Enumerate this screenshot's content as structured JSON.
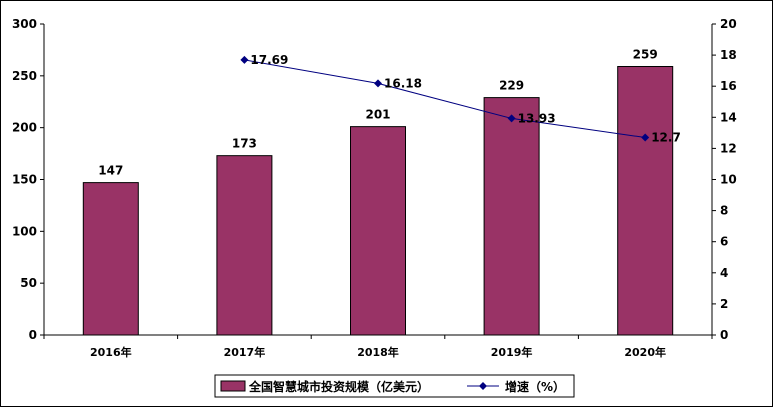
{
  "chart_data": {
    "type": "bar",
    "categories": [
      "2016年",
      "2017年",
      "2018年",
      "2019年",
      "2020年"
    ],
    "series": [
      {
        "name": "全国智慧城市投资规模（亿美元）",
        "type": "bar",
        "axis": "left",
        "values": [
          147,
          173,
          201,
          229,
          259
        ],
        "labels": [
          "147",
          "173",
          "201",
          "229",
          "259"
        ],
        "color": "#993366"
      },
      {
        "name": "增速（%）",
        "type": "line",
        "axis": "right",
        "values": [
          null,
          17.69,
          16.18,
          13.93,
          12.7
        ],
        "labels": [
          "",
          "17.69",
          "16.18",
          "13.93",
          "12.7"
        ],
        "color": "#000080"
      }
    ],
    "y_left": {
      "min": 0,
      "max": 300,
      "ticks": [
        "0",
        "50",
        "100",
        "150",
        "200",
        "250",
        "300"
      ]
    },
    "y_right": {
      "min": 0,
      "max": 20,
      "ticks": [
        "0",
        "2",
        "4",
        "6",
        "8",
        "10",
        "12",
        "14",
        "16",
        "18",
        "20"
      ]
    },
    "grid": false,
    "legend": "bottom"
  }
}
